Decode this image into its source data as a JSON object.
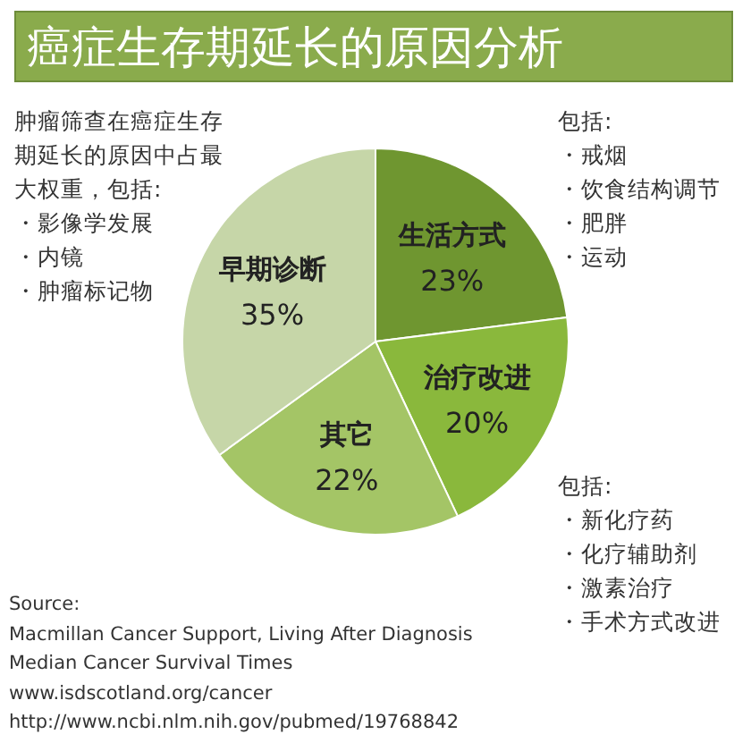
{
  "chart_data": {
    "type": "pie",
    "title": "癌症生存期延长的原因分析",
    "categories": [
      "生活方式",
      "治疗改进",
      "其它",
      "早期诊断"
    ],
    "values": [
      23,
      20,
      22,
      35
    ],
    "value_labels": [
      "23%",
      "20%",
      "22%",
      "35%"
    ],
    "colors": [
      "#6f9630",
      "#8ab83c",
      "#a4c566",
      "#c6d6a8"
    ],
    "annotations": [
      "肿瘤筛查在癌症生存期延长的原因中占最大权重，包括:",
      "・影像学发展",
      "・内镜",
      "・肿瘤标记物",
      "包括:",
      "・戒烟",
      "・饮食结构调节",
      "・肥胖",
      "・运动",
      "包括:",
      "・新化疗药",
      "・化疗辅助剂",
      "・激素治疗",
      "・手术方式改进",
      "Source:",
      "Macmillan Cancer Support, Living After Diagnosis",
      "Median Cancer Survival Times",
      "www.isdscotland.org/cancer",
      "http://www.ncbi.nlm.nih.gov/pubmed/19768842"
    ]
  }
}
